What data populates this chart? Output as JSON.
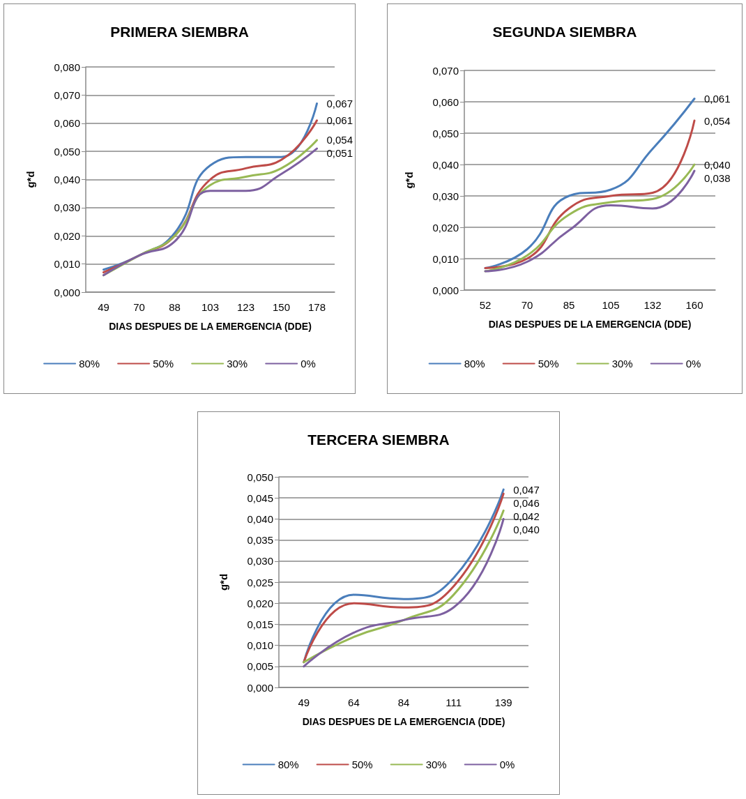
{
  "chart_data": [
    {
      "type": "line",
      "title": "PRIMERA SIEMBRA",
      "xlabel": "DIAS DESPUES DE LA EMERGENCIA (DDE)",
      "ylabel": "g*d",
      "categories": [
        "49",
        "70",
        "88",
        "103",
        "123",
        "150",
        "178"
      ],
      "ylim": [
        0,
        0.08
      ],
      "yticks": [
        {
          "value": 0,
          "label": "0,000"
        },
        {
          "value": 0.01,
          "label": "0,010"
        },
        {
          "value": 0.02,
          "label": "0,020"
        },
        {
          "value": 0.03,
          "label": "0,030"
        },
        {
          "value": 0.04,
          "label": "0,040"
        },
        {
          "value": 0.05,
          "label": "0,050"
        },
        {
          "value": 0.06,
          "label": "0,060"
        },
        {
          "value": 0.07,
          "label": "0,070"
        },
        {
          "value": 0.08,
          "label": "0,080"
        }
      ],
      "grid": "y",
      "legend": "bottom",
      "marker": "none",
      "line_style": "solid",
      "series": [
        {
          "name": "80%",
          "color": "#4a7ebb",
          "values": [
            0.008,
            0.013,
            0.021,
            0.045,
            0.048,
            0.048,
            0.067
          ],
          "value_labels": [
            null,
            null,
            null,
            null,
            null,
            null,
            "0,067"
          ]
        },
        {
          "name": "50%",
          "color": "#be4b48",
          "values": [
            0.007,
            0.013,
            0.02,
            0.04,
            0.044,
            0.047,
            0.061
          ],
          "value_labels": [
            null,
            null,
            null,
            null,
            null,
            null,
            "0,061"
          ]
        },
        {
          "name": "30%",
          "color": "#98b954",
          "values": [
            0.006,
            0.013,
            0.02,
            0.038,
            0.041,
            0.044,
            0.054
          ],
          "value_labels": [
            null,
            null,
            null,
            null,
            null,
            null,
            "0,054"
          ]
        },
        {
          "name": "0%",
          "color": "#7d60a0",
          "values": [
            0.006,
            0.013,
            0.018,
            0.036,
            0.036,
            0.042,
            0.051
          ],
          "value_labels": [
            null,
            null,
            null,
            null,
            null,
            null,
            "0,051"
          ]
        }
      ]
    },
    {
      "type": "line",
      "title": "SEGUNDA SIEMBRA",
      "xlabel": "DIAS DESPUES DE LA EMERGENCIA (DDE)",
      "ylabel": "g*d",
      "categories": [
        "52",
        "70",
        "85",
        "105",
        "132",
        "160"
      ],
      "ylim": [
        0,
        0.07
      ],
      "yticks": [
        {
          "value": 0,
          "label": "0,000"
        },
        {
          "value": 0.01,
          "label": "0,010"
        },
        {
          "value": 0.02,
          "label": "0,020"
        },
        {
          "value": 0.03,
          "label": "0,030"
        },
        {
          "value": 0.04,
          "label": "0,040"
        },
        {
          "value": 0.05,
          "label": "0,050"
        },
        {
          "value": 0.06,
          "label": "0,060"
        },
        {
          "value": 0.07,
          "label": "0,070"
        }
      ],
      "grid": "y",
      "legend": "bottom",
      "marker": "none",
      "line_style": "solid",
      "series": [
        {
          "name": "80%",
          "color": "#4a7ebb",
          "values": [
            0.007,
            0.013,
            0.03,
            0.032,
            0.045,
            0.061
          ],
          "value_labels": [
            null,
            null,
            null,
            null,
            null,
            "0,061"
          ]
        },
        {
          "name": "50%",
          "color": "#be4b48",
          "values": [
            0.007,
            0.01,
            0.026,
            0.03,
            0.031,
            0.054
          ],
          "value_labels": [
            null,
            null,
            null,
            null,
            null,
            "0,054"
          ]
        },
        {
          "name": "30%",
          "color": "#98b954",
          "values": [
            0.006,
            0.011,
            0.024,
            0.028,
            0.029,
            0.04
          ],
          "value_labels": [
            null,
            null,
            null,
            null,
            null,
            "0,040"
          ]
        },
        {
          "name": "0%",
          "color": "#7d60a0",
          "values": [
            0.006,
            0.009,
            0.019,
            0.027,
            0.026,
            0.038
          ],
          "value_labels": [
            null,
            null,
            null,
            null,
            null,
            "0,038"
          ]
        }
      ]
    },
    {
      "type": "line",
      "title": "TERCERA SIEMBRA",
      "xlabel": "DIAS DESPUES DE LA EMERGENCIA (DDE)",
      "ylabel": "g*d",
      "categories": [
        "49",
        "64",
        "84",
        "111",
        "139"
      ],
      "ylim": [
        0,
        0.05
      ],
      "yticks": [
        {
          "value": 0,
          "label": "0,000"
        },
        {
          "value": 0.005,
          "label": "0,005"
        },
        {
          "value": 0.01,
          "label": "0,010"
        },
        {
          "value": 0.015,
          "label": "0,015"
        },
        {
          "value": 0.02,
          "label": "0,020"
        },
        {
          "value": 0.025,
          "label": "0,025"
        },
        {
          "value": 0.03,
          "label": "0,030"
        },
        {
          "value": 0.035,
          "label": "0,035"
        },
        {
          "value": 0.04,
          "label": "0,040"
        },
        {
          "value": 0.045,
          "label": "0,045"
        },
        {
          "value": 0.05,
          "label": "0,050"
        }
      ],
      "grid": "y",
      "legend": "bottom",
      "marker": "none",
      "line_style": "solid",
      "series": [
        {
          "name": "80%",
          "color": "#4a7ebb",
          "values": [
            0.006,
            0.022,
            0.021,
            0.026,
            0.047
          ],
          "value_labels": [
            null,
            null,
            null,
            null,
            "0,047"
          ]
        },
        {
          "name": "50%",
          "color": "#be4b48",
          "values": [
            0.006,
            0.02,
            0.019,
            0.024,
            0.046
          ],
          "value_labels": [
            null,
            null,
            null,
            null,
            "0,046"
          ]
        },
        {
          "name": "30%",
          "color": "#98b954",
          "values": [
            0.006,
            0.012,
            0.016,
            0.022,
            0.042
          ],
          "value_labels": [
            null,
            null,
            null,
            null,
            "0,042"
          ]
        },
        {
          "name": "0%",
          "color": "#7d60a0",
          "values": [
            0.005,
            0.013,
            0.016,
            0.019,
            0.04
          ],
          "value_labels": [
            null,
            null,
            null,
            null,
            "0,040"
          ]
        }
      ]
    }
  ]
}
